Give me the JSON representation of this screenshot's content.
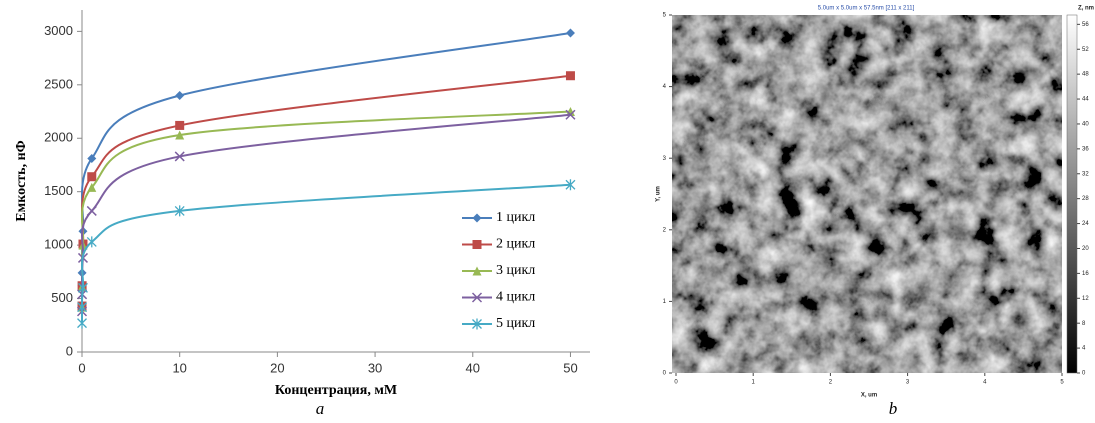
{
  "chart_data": [
    {
      "type": "line",
      "caption": "a",
      "xlabel": "Концентрация, мМ",
      "ylabel": "Емкость, нФ",
      "x": [
        0.001,
        0.01,
        0.1,
        1,
        10,
        50
      ],
      "xlim": [
        0,
        52
      ],
      "xticks": [
        0,
        10,
        20,
        30,
        40,
        50
      ],
      "ylim": [
        0,
        3200
      ],
      "yticks": [
        0,
        500,
        1000,
        1500,
        2000,
        2500,
        3000
      ],
      "legend": "right",
      "series": [
        {
          "name": "1 цикл",
          "color": "#4a7ebb",
          "marker": "diamond",
          "values": [
            620,
            740,
            1130,
            1810,
            2400,
            2985
          ]
        },
        {
          "name": "2 цикл",
          "color": "#be4b48",
          "marker": "square",
          "values": [
            430,
            620,
            1010,
            1640,
            2120,
            2585
          ]
        },
        {
          "name": "3 цикл",
          "color": "#98b954",
          "marker": "triangle",
          "values": [
            420,
            610,
            1000,
            1540,
            2030,
            2250
          ]
        },
        {
          "name": "4 цикл",
          "color": "#7d60a0",
          "marker": "x",
          "values": [
            380,
            540,
            880,
            1320,
            1830,
            2220
          ]
        },
        {
          "name": "5 цикл",
          "color": "#46aac5",
          "marker": "star",
          "values": [
            270,
            420,
            600,
            1030,
            1320,
            1565
          ]
        }
      ]
    },
    {
      "type": "image",
      "caption": "b",
      "title": "5.0um x 5.0um x 57.5nm [211 x 211]",
      "xlabel": "X, um",
      "ylabel": "Y, um",
      "colorbar_label": "Z, nm",
      "xlim": [
        0,
        5
      ],
      "xticks": [
        0,
        1,
        2,
        3,
        4,
        5
      ],
      "ylim": [
        0,
        5
      ],
      "yticks": [
        0,
        1,
        2,
        3,
        4,
        5
      ],
      "zlim": [
        0,
        57.5
      ],
      "zticks": [
        0,
        4,
        8,
        12,
        16,
        20,
        24,
        28,
        32,
        36,
        40,
        44,
        48,
        52,
        56
      ]
    }
  ]
}
